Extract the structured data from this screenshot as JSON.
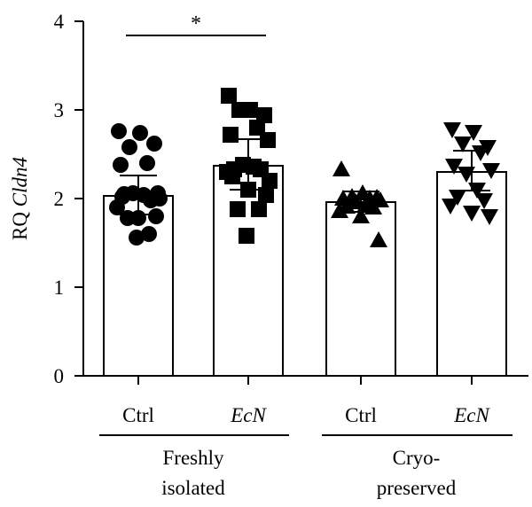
{
  "chart_data": {
    "type": "bar",
    "title": "",
    "ylabel": {
      "prefix": "RQ ",
      "gene": "Cldn4"
    },
    "ylim": [
      0,
      4
    ],
    "yticks": [
      "0",
      "1",
      "2",
      "3",
      "4"
    ],
    "categories": [
      {
        "label": "Ctrl",
        "italic": false,
        "marker": "circle"
      },
      {
        "label": "EcN",
        "italic": true,
        "marker": "square"
      },
      {
        "label": "Ctrl",
        "italic": false,
        "marker": "triangle-up"
      },
      {
        "label": "EcN",
        "italic": true,
        "marker": "triangle-down"
      }
    ],
    "groups": [
      {
        "lines": [
          "Freshly",
          "isolated"
        ],
        "categories": [
          0,
          1
        ]
      },
      {
        "lines": [
          "Cryo-",
          "preserved"
        ],
        "categories": [
          2,
          3
        ]
      }
    ],
    "means": [
      2.03,
      2.37,
      1.96,
      2.3
    ],
    "error": [
      {
        "low": 1.82,
        "high": 2.26
      },
      {
        "low": 2.1,
        "high": 2.67
      },
      {
        "low": 1.85,
        "high": 2.08
      },
      {
        "low": 2.09,
        "high": 2.54
      }
    ],
    "points": [
      [
        2.76,
        2.74,
        2.58,
        2.62,
        2.4,
        2.38,
        2.06,
        2.06,
        2.04,
        2.05,
        1.98,
        1.9,
        1.78,
        1.8,
        1.78,
        1.6,
        1.56,
        2.0,
        2.02
      ],
      [
        3.16,
        3.0,
        3.0,
        2.94,
        2.8,
        2.72,
        2.66,
        2.38,
        2.36,
        2.33,
        2.33,
        2.3,
        2.1,
        2.04,
        1.88,
        1.88,
        1.58,
        2.2,
        2.25
      ],
      [
        2.33,
        2.06,
        2.02,
        2.01,
        2.0,
        2.0,
        1.98,
        1.96,
        1.94,
        1.91,
        1.9,
        1.86,
        1.8,
        1.53
      ],
      [
        2.78,
        2.75,
        2.62,
        2.58,
        2.52,
        2.37,
        2.32,
        2.28,
        2.1,
        2.02,
        1.98,
        1.92,
        1.84,
        1.8
      ]
    ],
    "significance": [
      {
        "from": 0,
        "to": 1,
        "y": 3.84,
        "label": "*"
      }
    ],
    "grid": false,
    "legend": "none"
  }
}
